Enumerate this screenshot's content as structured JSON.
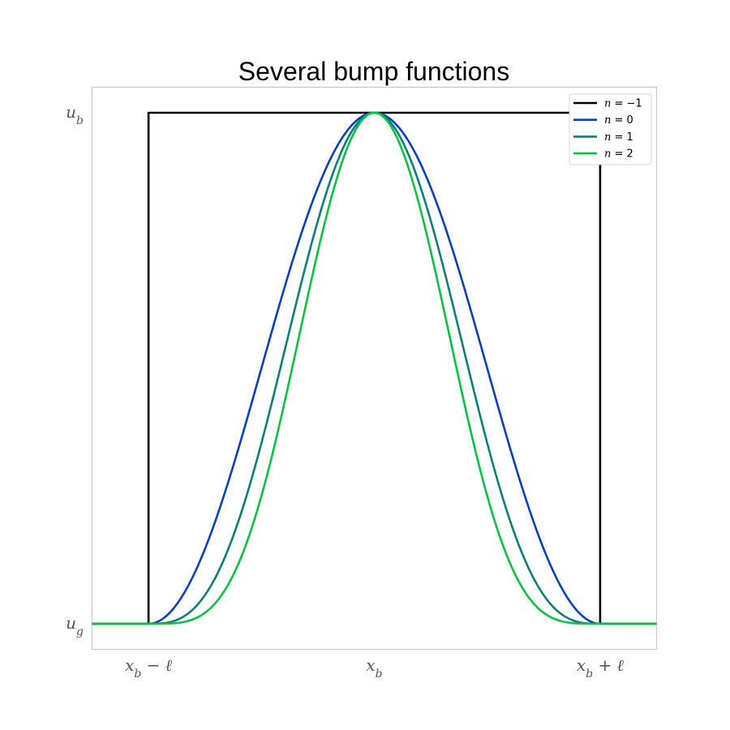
{
  "chart_data": {
    "type": "line",
    "title": "Several bump functions",
    "xlabel": "",
    "ylabel": "",
    "x_domain": [
      -1.25,
      1.25
    ],
    "xlim": [
      -1.25,
      1.25
    ],
    "ylim": [
      -0.05,
      1.05
    ],
    "x_ticks": [
      {
        "value": -1,
        "label": "x_b − ℓ"
      },
      {
        "value": 0,
        "label": "x_b"
      },
      {
        "value": 1,
        "label": "x_b + ℓ"
      }
    ],
    "y_ticks": [
      {
        "value": 0,
        "label": "u_g"
      },
      {
        "value": 1,
        "label": "u_b"
      }
    ],
    "grid": false,
    "legend_position": "top-right",
    "series": [
      {
        "name": "n = −1",
        "n": -1,
        "color": "#000000"
      },
      {
        "name": "n = 0",
        "n": 0,
        "color": "#0a3fbd"
      },
      {
        "name": "n = 1",
        "n": 1,
        "color": "#0d7f7a"
      },
      {
        "name": "n = 2",
        "n": 2,
        "color": "#0ac143"
      }
    ]
  }
}
